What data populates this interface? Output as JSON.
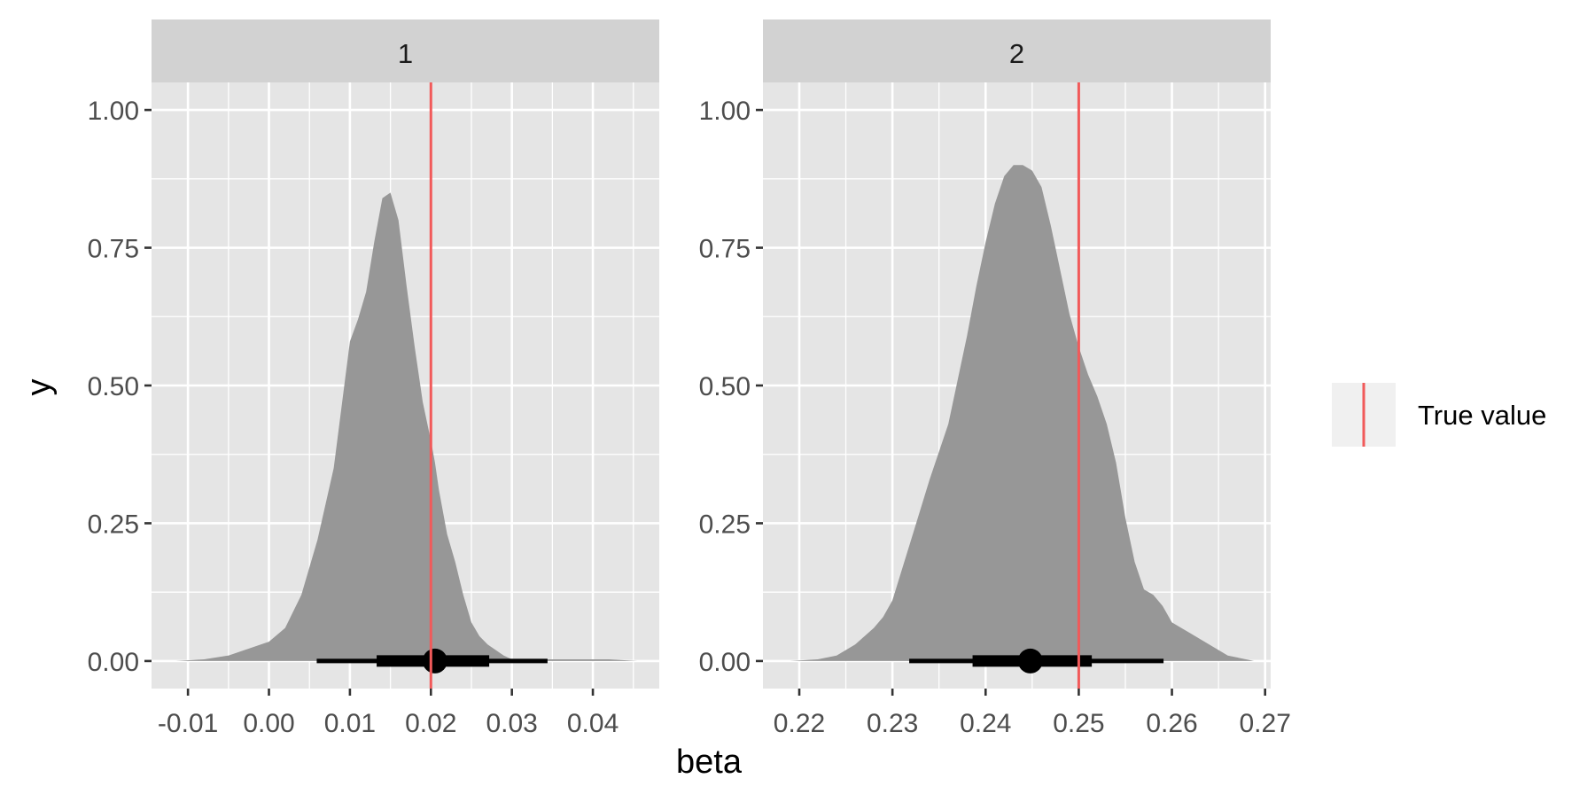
{
  "chart_data": [
    {
      "type": "area",
      "facet_label": "1",
      "xlim": [
        -0.0145,
        0.0482
      ],
      "ylim": [
        -0.05,
        1.05
      ],
      "x_ticks": [
        -0.01,
        0.0,
        0.01,
        0.02,
        0.03,
        0.04
      ],
      "x_tick_labels": [
        "-0.01",
        "0.00",
        "0.01",
        "0.02",
        "0.03",
        "0.04"
      ],
      "y_ticks": [
        0,
        0.25,
        0.5,
        0.75,
        1.0
      ],
      "y_tick_labels": [
        "0.00",
        "0.25",
        "0.50",
        "0.75",
        "1.00"
      ],
      "density": {
        "x": [
          -0.0115,
          -0.008,
          -0.005,
          -0.002,
          0.0,
          0.002,
          0.004,
          0.006,
          0.008,
          0.01,
          0.011,
          0.012,
          0.013,
          0.014,
          0.015,
          0.016,
          0.017,
          0.018,
          0.019,
          0.02,
          0.0205,
          0.021,
          0.022,
          0.023,
          0.024,
          0.025,
          0.026,
          0.027,
          0.028,
          0.029,
          0.03,
          0.031,
          0.032,
          0.033,
          0.034,
          0.035,
          0.036,
          0.038,
          0.04,
          0.042,
          0.0455
        ],
        "y": [
          0.0,
          0.003,
          0.01,
          0.025,
          0.035,
          0.06,
          0.12,
          0.22,
          0.35,
          0.58,
          0.62,
          0.67,
          0.76,
          0.84,
          0.85,
          0.8,
          0.68,
          0.57,
          0.47,
          0.4,
          0.36,
          0.31,
          0.23,
          0.18,
          0.12,
          0.07,
          0.045,
          0.03,
          0.02,
          0.01,
          0.003,
          0.003,
          0.003,
          0.003,
          0.003,
          0.003,
          0.003,
          0.003,
          0.003,
          0.003,
          0.0
        ]
      },
      "point": 0.0205,
      "interval_66": [
        0.0133,
        0.0272
      ],
      "interval_95": [
        0.0059,
        0.0344
      ],
      "true_value": 0.02
    },
    {
      "type": "area",
      "facet_label": "2",
      "xlim": [
        0.2161,
        0.2706
      ],
      "ylim": [
        -0.05,
        1.05
      ],
      "x_ticks": [
        0.22,
        0.23,
        0.24,
        0.25,
        0.26,
        0.27
      ],
      "x_tick_labels": [
        "0.22",
        "0.23",
        "0.24",
        "0.25",
        "0.26",
        "0.27"
      ],
      "y_ticks": [
        0,
        0.25,
        0.5,
        0.75,
        1.0
      ],
      "y_tick_labels": [
        "0.00",
        "0.25",
        "0.50",
        "0.75",
        "1.00"
      ],
      "density": {
        "x": [
          0.219,
          0.222,
          0.224,
          0.226,
          0.228,
          0.229,
          0.23,
          0.232,
          0.234,
          0.236,
          0.238,
          0.239,
          0.24,
          0.241,
          0.242,
          0.243,
          0.244,
          0.245,
          0.246,
          0.247,
          0.248,
          0.249,
          0.25,
          0.251,
          0.252,
          0.253,
          0.254,
          0.255,
          0.256,
          0.257,
          0.258,
          0.259,
          0.26,
          0.262,
          0.264,
          0.266,
          0.2688
        ],
        "y": [
          0.0,
          0.003,
          0.01,
          0.03,
          0.06,
          0.08,
          0.11,
          0.22,
          0.33,
          0.43,
          0.59,
          0.68,
          0.76,
          0.83,
          0.88,
          0.9,
          0.9,
          0.89,
          0.86,
          0.79,
          0.71,
          0.63,
          0.57,
          0.52,
          0.48,
          0.43,
          0.36,
          0.26,
          0.18,
          0.13,
          0.12,
          0.1,
          0.07,
          0.05,
          0.03,
          0.01,
          0.0
        ]
      },
      "point": 0.2448,
      "interval_66": [
        0.2386,
        0.2514
      ],
      "interval_95": [
        0.2318,
        0.2591
      ],
      "true_value": 0.25
    }
  ],
  "axis": {
    "xlabel": "beta",
    "ylabel": "y"
  },
  "legend": {
    "label": "True value",
    "position": "right"
  },
  "colors": {
    "panel_bg": "#e5e5e5",
    "strip_bg": "#d2d2d2",
    "grid": "#ffffff",
    "density_fill": "#979797",
    "interval": "#000000",
    "true_value_line": "#f15a5a",
    "legend_key_bg": "#f0f0f0",
    "tick_text": "#4d4d4d",
    "title_text": "#000000"
  }
}
